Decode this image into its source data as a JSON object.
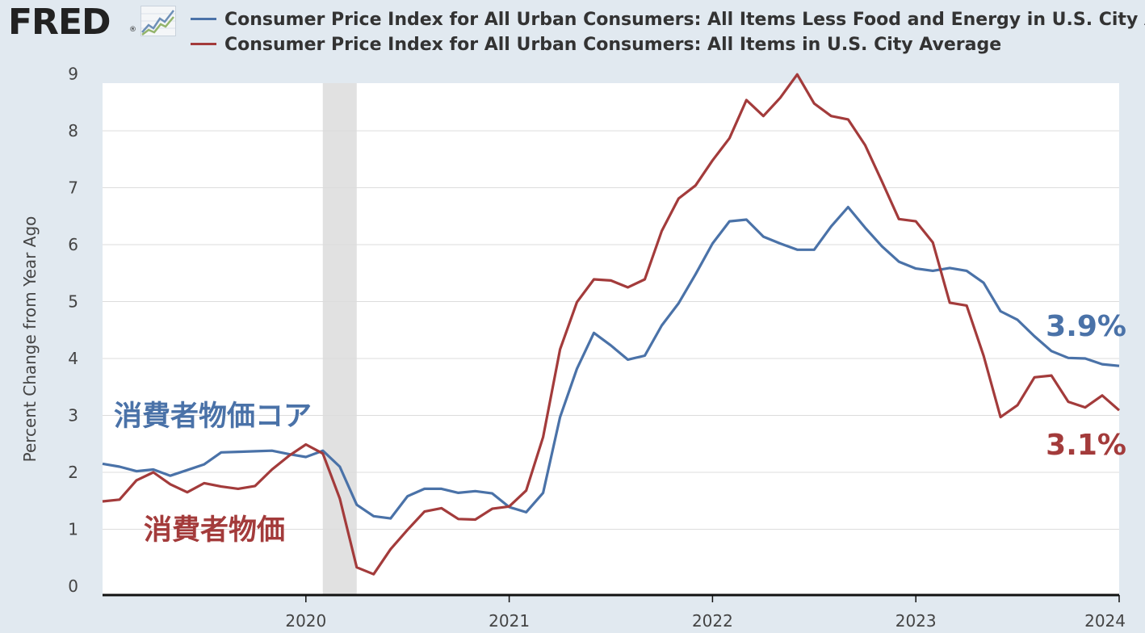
{
  "header": {
    "logo_text": "FRED",
    "logo_reg": "®"
  },
  "colors": {
    "core": "#4a72a8",
    "headline": "#a33b3b",
    "background": "#e1e9f0",
    "plot_bg": "#ffffff",
    "recession": "#e1e1e1"
  },
  "icons": [
    "fred-logo-chart-icon"
  ],
  "chart_data": {
    "type": "line",
    "title": "",
    "xlabel": "",
    "ylabel": "Percent Change from Year Ago",
    "ylim": [
      0,
      9
    ],
    "yticks": [
      "0",
      "1",
      "2",
      "3",
      "4",
      "5",
      "6",
      "7",
      "8",
      "9"
    ],
    "xlim": [
      "2019-01",
      "2024-01"
    ],
    "xticks": [
      "2020",
      "2021",
      "2022",
      "2023",
      "2024"
    ],
    "grid": true,
    "legend_position": "top",
    "recession_shading": {
      "start": "2020-02",
      "end": "2020-04"
    },
    "x": [
      "2019-01",
      "2019-02",
      "2019-03",
      "2019-04",
      "2019-05",
      "2019-06",
      "2019-07",
      "2019-08",
      "2019-09",
      "2019-10",
      "2019-11",
      "2019-12",
      "2020-01",
      "2020-02",
      "2020-03",
      "2020-04",
      "2020-05",
      "2020-06",
      "2020-07",
      "2020-08",
      "2020-09",
      "2020-10",
      "2020-11",
      "2020-12",
      "2021-01",
      "2021-02",
      "2021-03",
      "2021-04",
      "2021-05",
      "2021-06",
      "2021-07",
      "2021-08",
      "2021-09",
      "2021-10",
      "2021-11",
      "2021-12",
      "2022-01",
      "2022-02",
      "2022-03",
      "2022-04",
      "2022-05",
      "2022-06",
      "2022-07",
      "2022-08",
      "2022-09",
      "2022-10",
      "2022-11",
      "2022-12",
      "2023-01",
      "2023-02",
      "2023-03",
      "2023-04",
      "2023-05",
      "2023-06",
      "2023-07",
      "2023-08",
      "2023-09",
      "2023-10",
      "2023-11",
      "2023-12",
      "2024-01"
    ],
    "series": [
      {
        "name": "Consumer Price Index for All Urban Consumers: All Items Less Food and Energy in U.S. City Average",
        "color": "#4a72a8",
        "values": [
          2.15,
          2.1,
          2.02,
          2.05,
          1.94,
          2.04,
          2.14,
          2.35,
          2.36,
          2.37,
          2.38,
          2.32,
          2.27,
          2.38,
          2.1,
          1.43,
          1.23,
          1.19,
          1.58,
          1.71,
          1.71,
          1.64,
          1.67,
          1.63,
          1.39,
          1.3,
          1.64,
          2.97,
          3.82,
          4.45,
          4.23,
          3.98,
          4.05,
          4.58,
          4.97,
          5.48,
          6.02,
          6.41,
          6.44,
          6.14,
          6.02,
          5.91,
          5.91,
          6.32,
          6.66,
          6.3,
          5.97,
          5.7,
          5.58,
          5.54,
          5.59,
          5.54,
          5.33,
          4.83,
          4.68,
          4.39,
          4.13,
          4.01,
          4.0,
          3.9,
          3.87
        ]
      },
      {
        "name": "Consumer Price Index for All Urban Consumers: All Items in U.S. City Average",
        "color": "#a33b3b",
        "values": [
          1.49,
          1.52,
          1.86,
          2.0,
          1.79,
          1.65,
          1.81,
          1.75,
          1.71,
          1.76,
          2.05,
          2.29,
          2.49,
          2.33,
          1.54,
          0.33,
          0.21,
          0.65,
          0.99,
          1.31,
          1.37,
          1.18,
          1.17,
          1.36,
          1.4,
          1.68,
          2.62,
          4.16,
          4.99,
          5.39,
          5.37,
          5.25,
          5.39,
          6.24,
          6.81,
          7.04,
          7.48,
          7.87,
          8.54,
          8.26,
          8.58,
          8.99,
          8.48,
          8.26,
          8.2,
          7.75,
          7.11,
          6.45,
          6.41,
          6.04,
          4.98,
          4.93,
          4.05,
          2.97,
          3.18,
          3.67,
          3.7,
          3.24,
          3.14,
          3.35,
          3.09
        ]
      }
    ],
    "annotations": {
      "core_series_label": "消費者物価コア",
      "headline_series_label": "消費者物価",
      "core_latest": "3.9%",
      "headline_latest": "3.1%"
    }
  }
}
